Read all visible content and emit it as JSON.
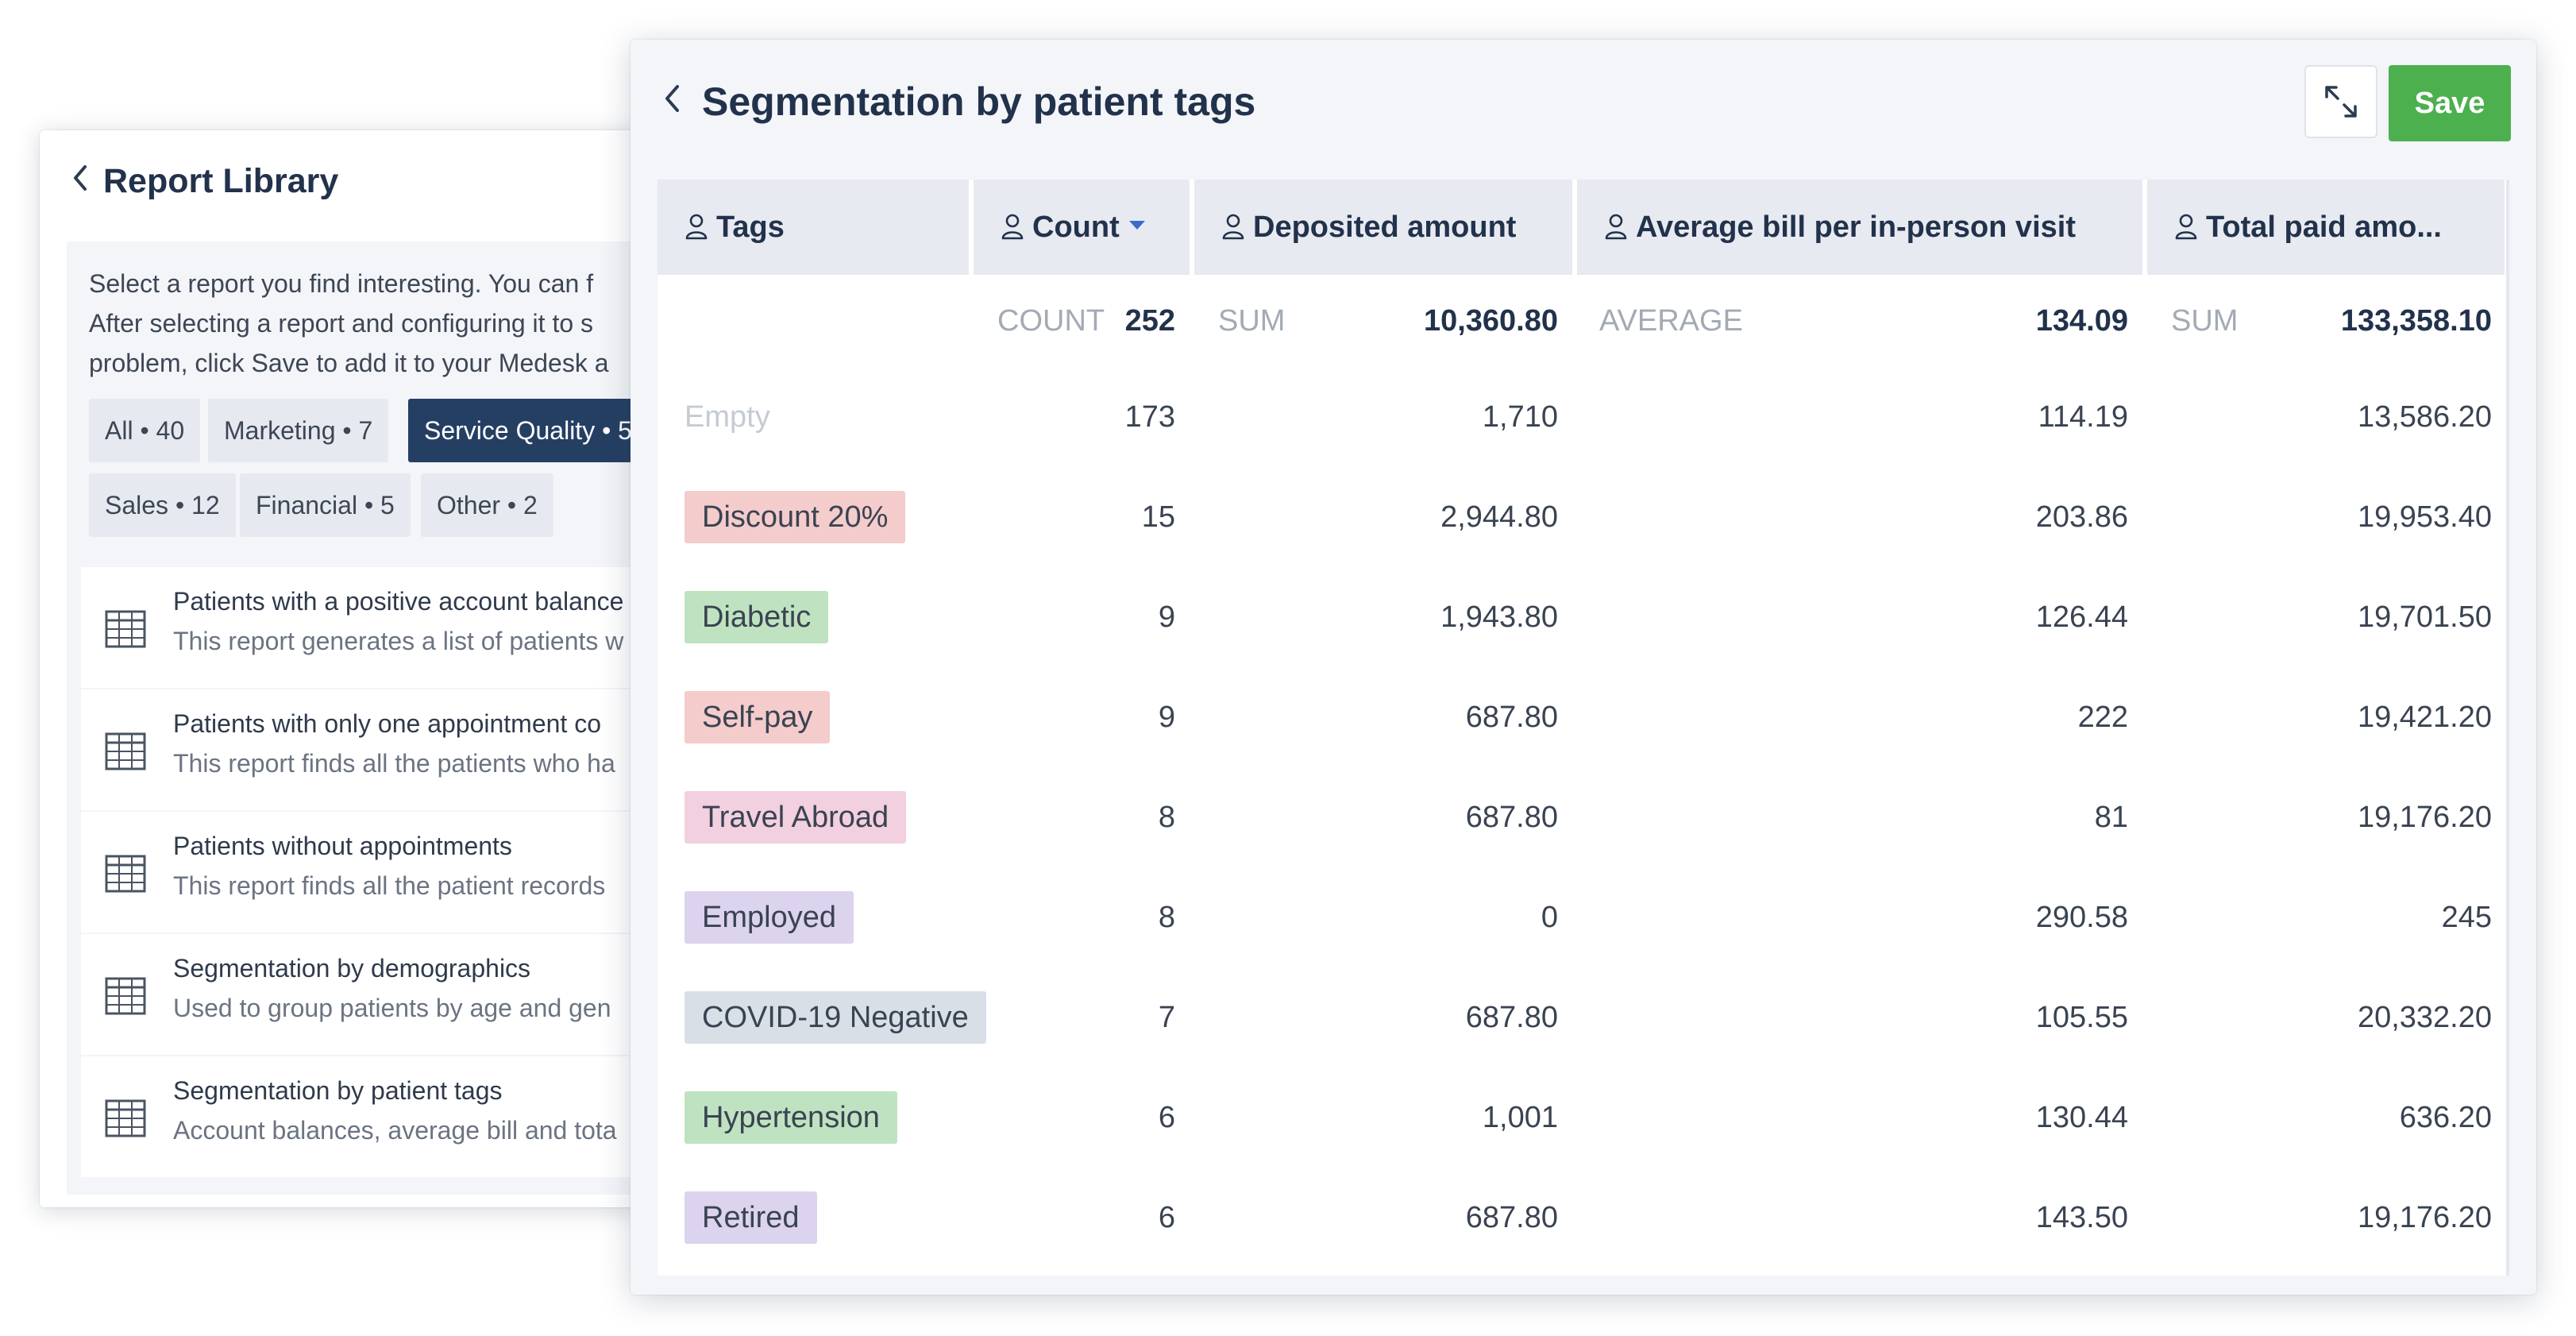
{
  "library": {
    "title": "Report Library",
    "description": [
      "Select a report you find interesting. You can f",
      "After selecting a report and configuring it to s",
      "problem, click Save to add it to your Medesk a"
    ],
    "filters": [
      {
        "label": "All • 40",
        "active": false
      },
      {
        "label": "Marketing • 7",
        "active": false
      },
      {
        "label": "Service Quality • 5",
        "active": true
      },
      {
        "label": "Sales • 12",
        "active": false
      },
      {
        "label": "Financial • 5",
        "active": false
      },
      {
        "label": "Other • 2",
        "active": false
      }
    ],
    "reports": [
      {
        "title": "Patients with a positive account balance",
        "desc": "This report generates a list of patients w",
        "icon": "table-grid-icon"
      },
      {
        "title": "Patients with only one appointment co",
        "desc": "This report finds all the patients who ha",
        "icon": "table-grid-icon"
      },
      {
        "title": "Patients without appointments",
        "desc": "This report finds all the patient records",
        "icon": "table-grid-icon"
      },
      {
        "title": "Segmentation by demographics",
        "desc": "Used to group patients by age and gen",
        "icon": "table-grid-icon"
      },
      {
        "title": "Segmentation by patient tags",
        "desc": "Account balances, average bill and tota",
        "icon": "table-grid-icon"
      }
    ]
  },
  "report": {
    "title": "Segmentation by patient tags",
    "save_label": "Save",
    "expand_icon": "expand-arrows-icon",
    "columns": [
      {
        "label": "Tags",
        "sorted": false
      },
      {
        "label": "Count",
        "sorted": true
      },
      {
        "label": "Deposited amount",
        "sorted": false
      },
      {
        "label": "Average bill per in-person visit",
        "sorted": false
      },
      {
        "label": "Total paid amo...",
        "sorted": false
      }
    ],
    "aggregates": {
      "count": {
        "label": "COUNT",
        "value": "252"
      },
      "deposited": {
        "label": "SUM",
        "value": "10,360.80"
      },
      "average": {
        "label": "AVERAGE",
        "value": "134.09"
      },
      "total": {
        "label": "SUM",
        "value": "133,358.10"
      }
    },
    "rows": [
      {
        "tag": "Empty",
        "color": null,
        "count": "173",
        "deposited": "1,710",
        "average": "114.19",
        "total": "13,586.20"
      },
      {
        "tag": "Discount 20%",
        "color": "#f4cccb",
        "count": "15",
        "deposited": "2,944.80",
        "average": "203.86",
        "total": "19,953.40"
      },
      {
        "tag": "Diabetic",
        "color": "#bfe3c0",
        "count": "9",
        "deposited": "1,943.80",
        "average": "126.44",
        "total": "19,701.50"
      },
      {
        "tag": "Self-pay",
        "color": "#f4cccb",
        "count": "9",
        "deposited": "687.80",
        "average": "222",
        "total": "19,421.20"
      },
      {
        "tag": "Travel Abroad",
        "color": "#f3d0df",
        "count": "8",
        "deposited": "687.80",
        "average": "81",
        "total": "19,176.20"
      },
      {
        "tag": "Employed",
        "color": "#dcd3ee",
        "count": "8",
        "deposited": "0",
        "average": "290.58",
        "total": "245"
      },
      {
        "tag": "COVID-19 Negative",
        "color": "#d9dfe7",
        "count": "7",
        "deposited": "687.80",
        "average": "105.55",
        "total": "20,332.20"
      },
      {
        "tag": "Hypertension",
        "color": "#bfe3c0",
        "count": "6",
        "deposited": "1,001",
        "average": "130.44",
        "total": "636.20"
      },
      {
        "tag": "Retired",
        "color": "#dcd3ee",
        "count": "6",
        "deposited": "687.80",
        "average": "143.50",
        "total": "19,176.20"
      }
    ]
  }
}
